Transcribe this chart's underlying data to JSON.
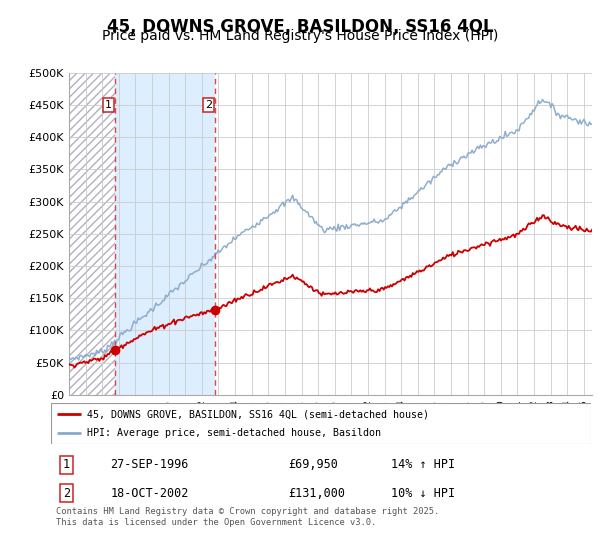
{
  "title": "45, DOWNS GROVE, BASILDON, SS16 4QL",
  "subtitle": "Price paid vs. HM Land Registry's House Price Index (HPI)",
  "ylim": [
    0,
    500000
  ],
  "yticks": [
    0,
    50000,
    100000,
    150000,
    200000,
    250000,
    300000,
    350000,
    400000,
    450000,
    500000
  ],
  "ytick_labels": [
    "£0",
    "£50K",
    "£100K",
    "£150K",
    "£200K",
    "£250K",
    "£300K",
    "£350K",
    "£400K",
    "£450K",
    "£500K"
  ],
  "x_start_year": 1994,
  "x_end_year": 2025,
  "t1_year": 1996.75,
  "t2_year": 2002.79,
  "t1_price": 69950,
  "t2_price": 131000,
  "red_line_color": "#cc0000",
  "blue_line_color": "#88aacc",
  "dashed_line_color": "#dd4444",
  "marker_color": "#cc0000",
  "hatch_color": "#d8d8e8",
  "between_color": "#ddeeff",
  "grid_color": "#cccccc",
  "legend_label1": "45, DOWNS GROVE, BASILDON, SS16 4QL (semi-detached house)",
  "legend_label2": "HPI: Average price, semi-detached house, Basildon",
  "table_row1": [
    "1",
    "27-SEP-1996",
    "£69,950",
    "14% ↑ HPI"
  ],
  "table_row2": [
    "2",
    "18-OCT-2002",
    "£131,000",
    "10% ↓ HPI"
  ],
  "footer": "Contains HM Land Registry data © Crown copyright and database right 2025.\nThis data is licensed under the Open Government Licence v3.0.",
  "title_fontsize": 12,
  "subtitle_fontsize": 10
}
